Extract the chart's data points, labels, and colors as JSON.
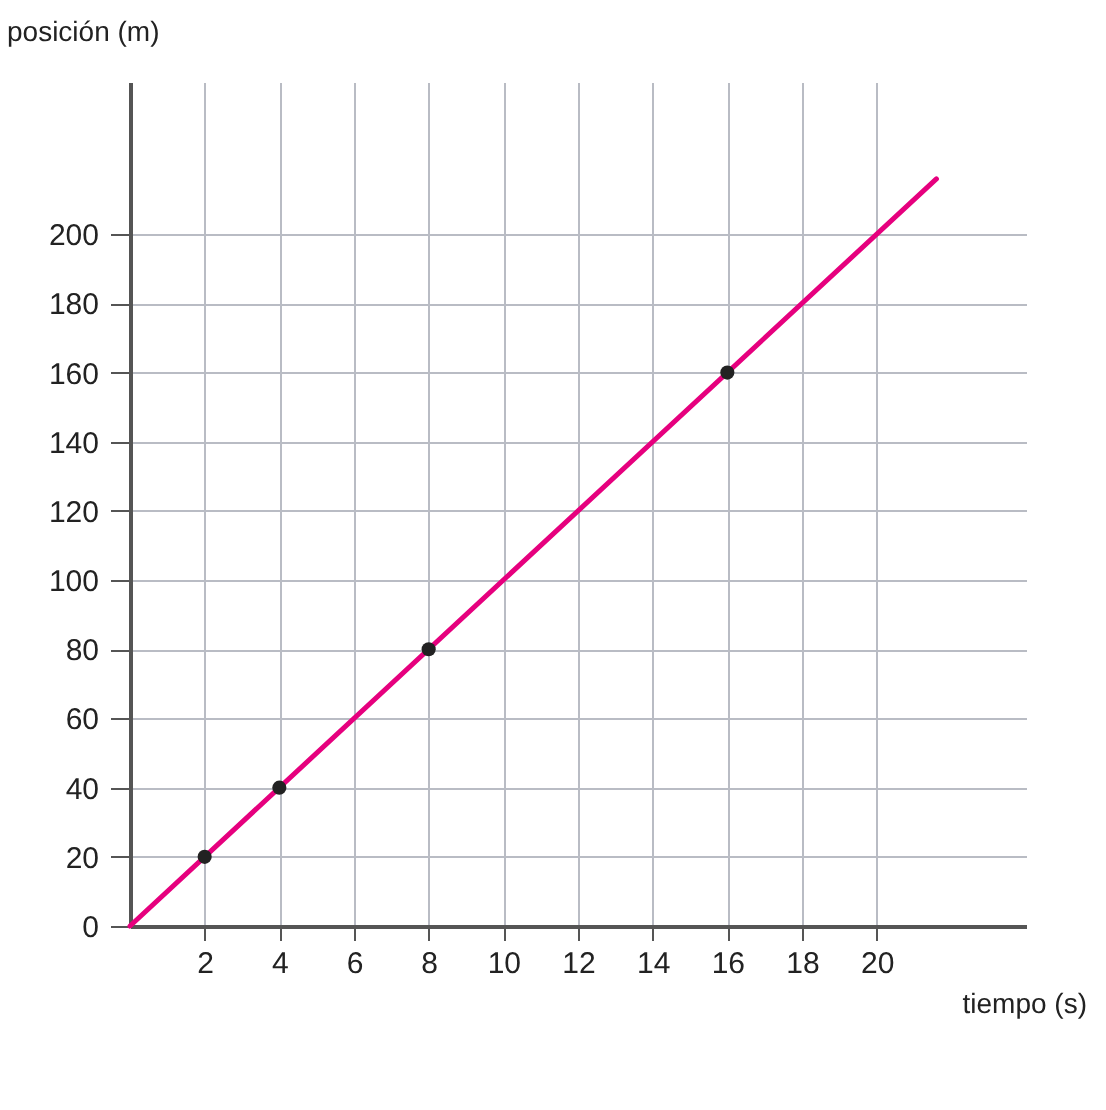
{
  "chart_data": {
    "type": "line",
    "xlabel": "tiempo (s)",
    "ylabel": "posición (m)",
    "xlim": [
      0,
      24
    ],
    "ylim": [
      0,
      244
    ],
    "xticks": [
      2,
      4,
      6,
      8,
      10,
      12,
      14,
      16,
      18,
      20
    ],
    "yticks": [
      0,
      20,
      40,
      60,
      80,
      100,
      120,
      140,
      160,
      180,
      200
    ],
    "grid": true,
    "series": [
      {
        "color": "#e6007e",
        "x": [
          0,
          21.6
        ],
        "values": [
          0,
          216
        ],
        "marker": "none"
      },
      {
        "type": "scatter",
        "color": "#222222",
        "x": [
          2,
          4,
          8,
          16
        ],
        "values": [
          20,
          40,
          80,
          160
        ],
        "marker": "circle"
      }
    ]
  }
}
